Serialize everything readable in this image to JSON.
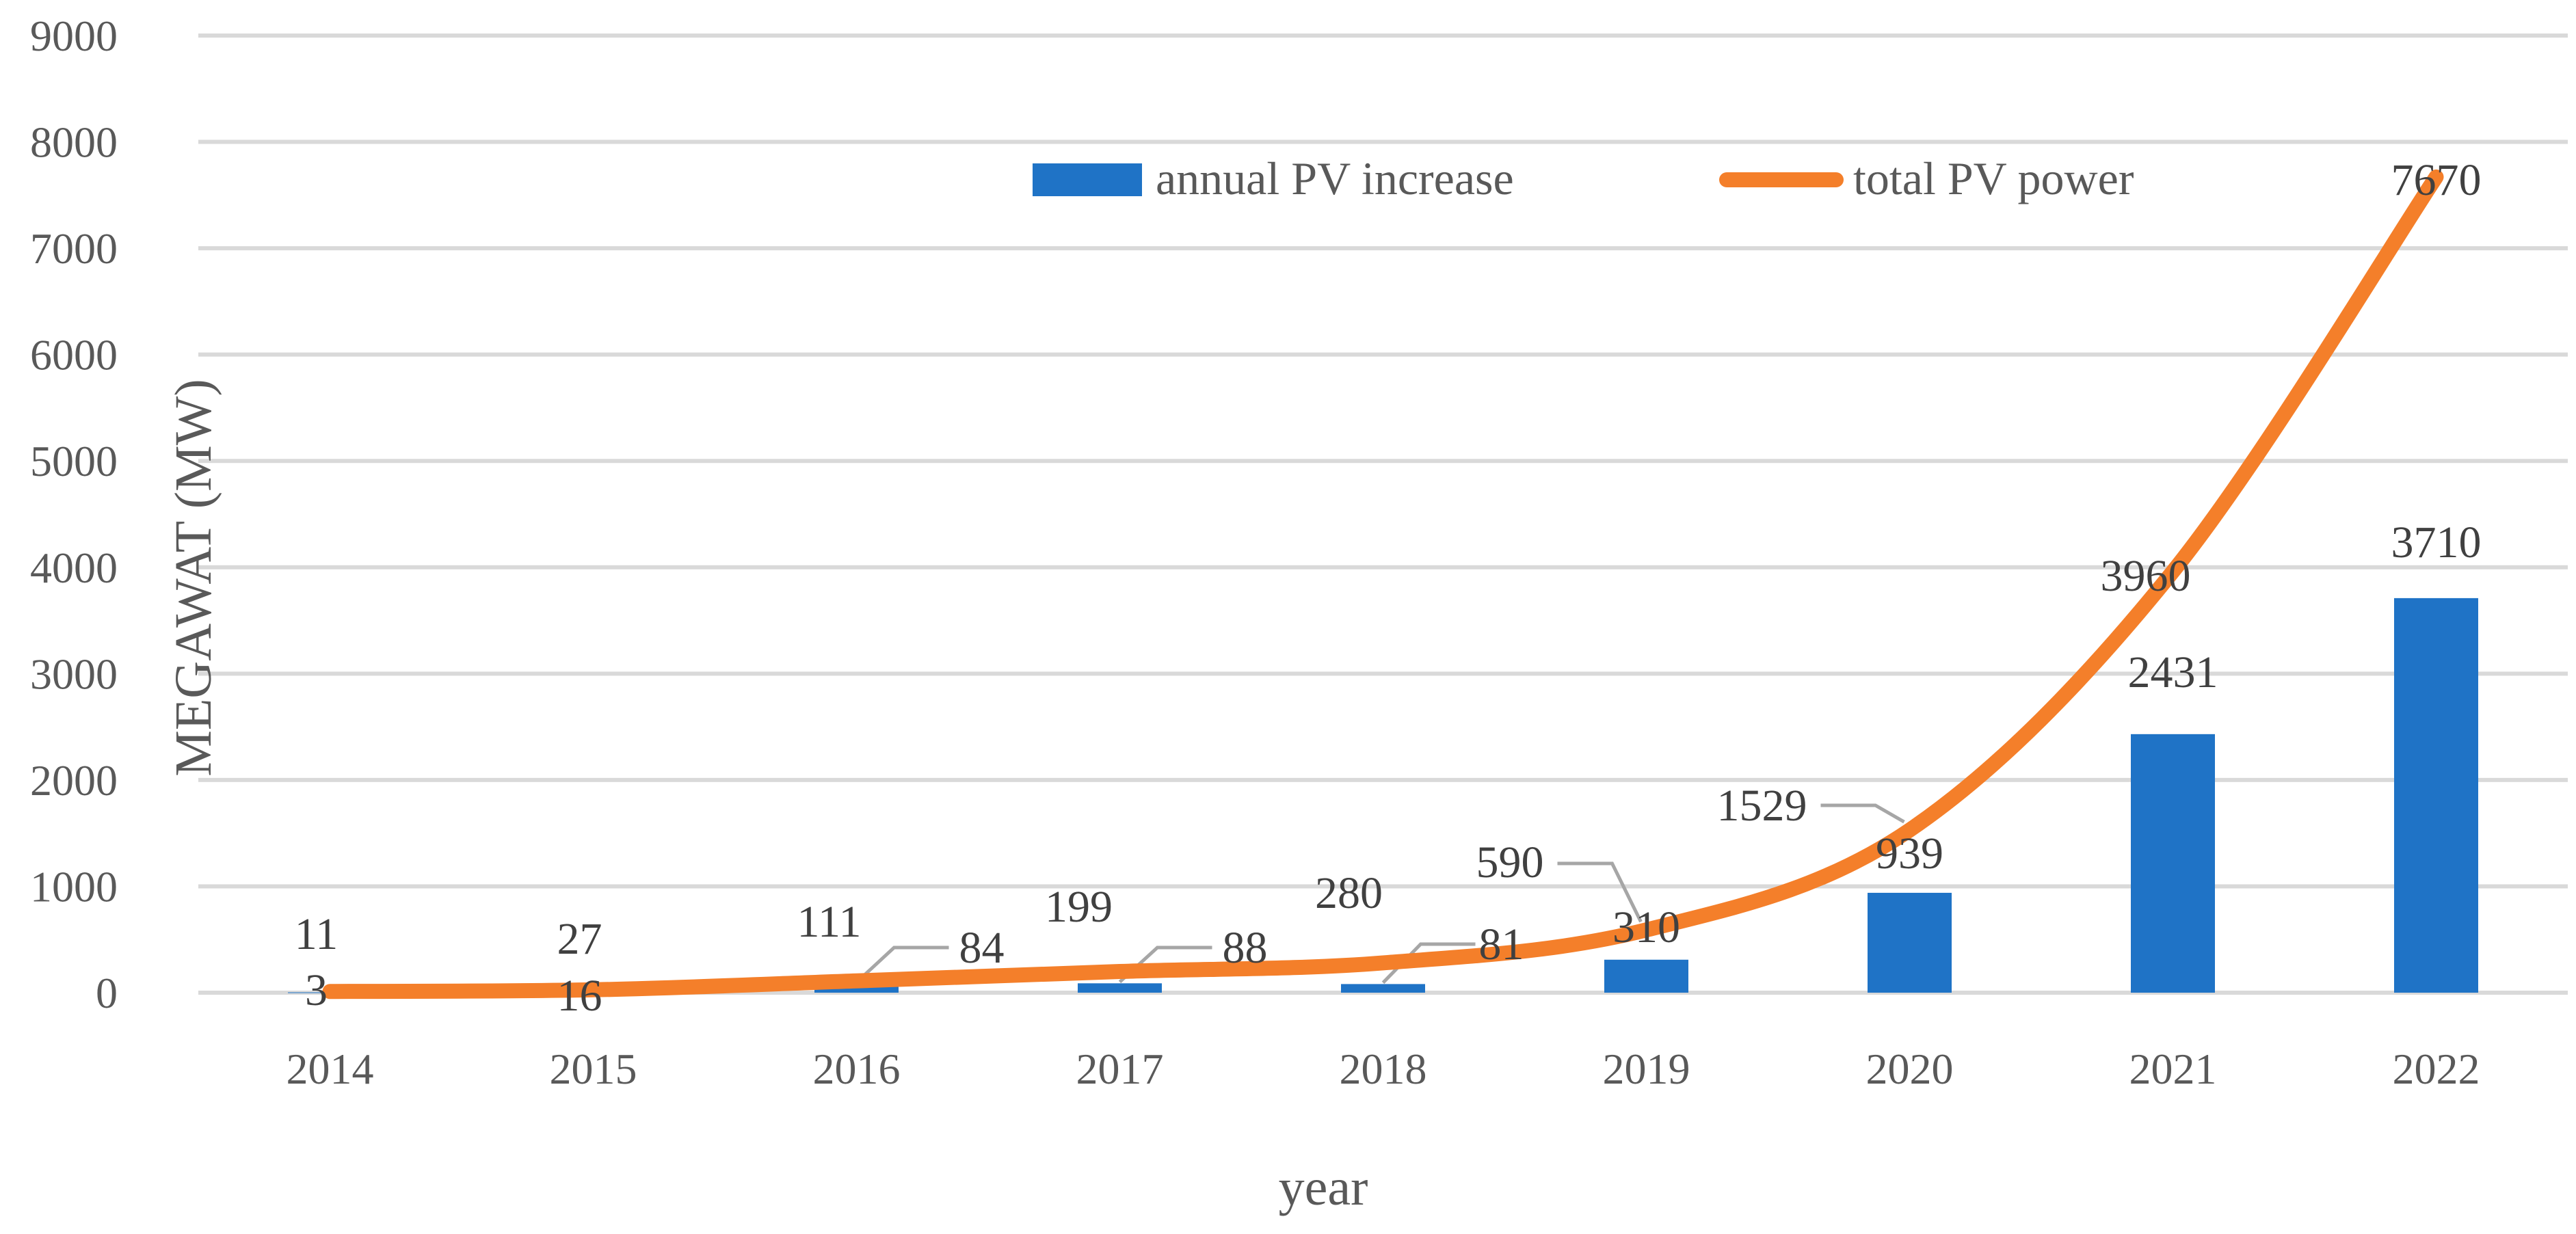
{
  "chart_data": {
    "type": "bar",
    "title": "",
    "xlabel": "year",
    "ylabel": "MEGAWAT (MW)",
    "ylim": [
      0,
      9000
    ],
    "yticks": [
      0,
      1000,
      2000,
      3000,
      4000,
      5000,
      6000,
      7000,
      8000,
      9000
    ],
    "grid": true,
    "legend_position": "top-right",
    "categories": [
      "2014",
      "2015",
      "2016",
      "2017",
      "2018",
      "2019",
      "2020",
      "2021",
      "2022"
    ],
    "series": [
      {
        "name": "annual PV increase",
        "type": "bar",
        "color": "#1f73c6",
        "values": [
          3,
          16,
          84,
          88,
          81,
          310,
          939,
          2431,
          3710
        ]
      },
      {
        "name": "total PV power",
        "type": "line",
        "color": "#f47f2a",
        "values": [
          11,
          27,
          111,
          199,
          280,
          590,
          1529,
          3960,
          7670
        ]
      }
    ]
  }
}
